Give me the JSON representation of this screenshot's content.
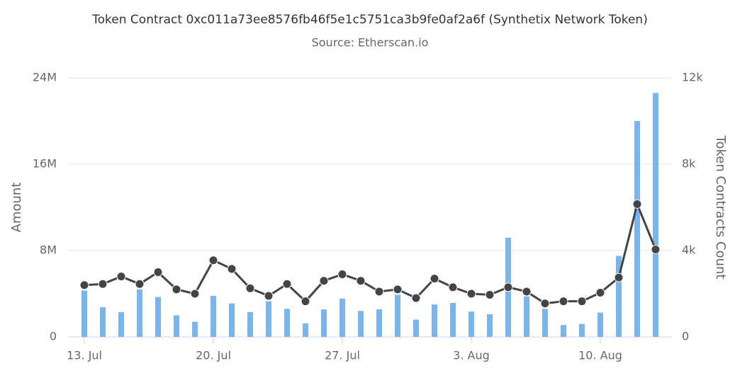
{
  "chart_data": {
    "type": "bar",
    "title": "Token Contract 0xc011a73ee8576fb46f5e1c5751ca3b9fe0af2a6f (Synthetix Network Token)",
    "subtitle": "Source: Etherscan.io",
    "y_label": "Amount",
    "y2_label": "Token Contracts Count",
    "categories": [
      "13. Jul",
      null,
      null,
      null,
      null,
      null,
      null,
      "20. Jul",
      null,
      null,
      null,
      null,
      null,
      null,
      "27. Jul",
      null,
      null,
      null,
      null,
      null,
      null,
      "3. Aug",
      null,
      null,
      null,
      null,
      null,
      null,
      "10. Aug",
      null,
      null,
      null
    ],
    "series": [
      {
        "type": "bar",
        "color": "#7cb5ec",
        "values": [
          4300000,
          2750000,
          2300000,
          4400000,
          3700000,
          2000000,
          1400000,
          3800000,
          3100000,
          2300000,
          3300000,
          2600000,
          1250000,
          2550000,
          3550000,
          2400000,
          2550000,
          3900000,
          1600000,
          3000000,
          3150000,
          2350000,
          2100000,
          9200000,
          3750000,
          2600000,
          1100000,
          1200000,
          2250000,
          7500000,
          20000000,
          22600000
        ]
      },
      {
        "type": "line",
        "color": "#434348",
        "axis": "y2",
        "values": [
          2400,
          2450,
          2800,
          2450,
          3000,
          2200,
          2000,
          3550,
          3150,
          2250,
          1900,
          2450,
          1650,
          2600,
          2900,
          2600,
          2100,
          2200,
          1800,
          2700,
          2300,
          2000,
          1950,
          2300,
          2100,
          1550,
          1650,
          1650,
          2050,
          2750,
          6150,
          4050
        ]
      }
    ],
    "ylim": [
      0,
      24000000
    ],
    "yticks": [
      0,
      {
        "value": 8000000,
        "label": "8M"
      },
      {
        "value": 16000000,
        "label": "16M"
      },
      {
        "value": 24000000,
        "label": "24M"
      }
    ],
    "y2lim": [
      0,
      12000
    ],
    "y2ticks": [
      0,
      {
        "value": 4000,
        "label": "4k"
      },
      {
        "value": 8000,
        "label": "8k"
      },
      {
        "value": 12000,
        "label": "12k"
      }
    ],
    "grid": true
  }
}
